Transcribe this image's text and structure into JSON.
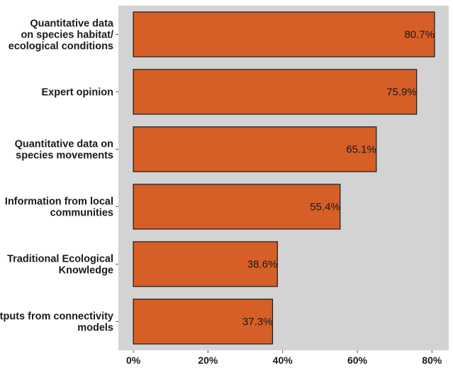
{
  "chart_data": {
    "type": "bar",
    "orientation": "horizontal",
    "categories": [
      [
        "Quantitative data",
        "on species habitat/",
        "ecological conditions"
      ],
      [
        "Expert opinion"
      ],
      [
        "Quantitative data on",
        "species movements"
      ],
      [
        "Information from local",
        "communities"
      ],
      [
        "Traditional Ecological",
        "Knowledge"
      ],
      [
        "Outputs from connectivity",
        "models"
      ]
    ],
    "values": [
      80.7,
      75.9,
      65.1,
      55.4,
      38.6,
      37.3
    ],
    "value_labels": [
      "80.7%",
      "75.9%",
      "65.1%",
      "55.4%",
      "38.6%",
      "37.3%"
    ],
    "xticks": [
      0,
      20,
      40,
      60,
      80
    ],
    "xtick_labels": [
      "0%",
      "20%",
      "40%",
      "60%",
      "80%"
    ],
    "xlim": [
      -4,
      84.5
    ],
    "title": "",
    "xlabel": "",
    "ylabel": "",
    "grid": false,
    "legend": "none",
    "colors": {
      "bar_fill": "#d55f27",
      "bar_stroke": "#1a1a1a",
      "panel_background": "#d3d3d3"
    }
  }
}
